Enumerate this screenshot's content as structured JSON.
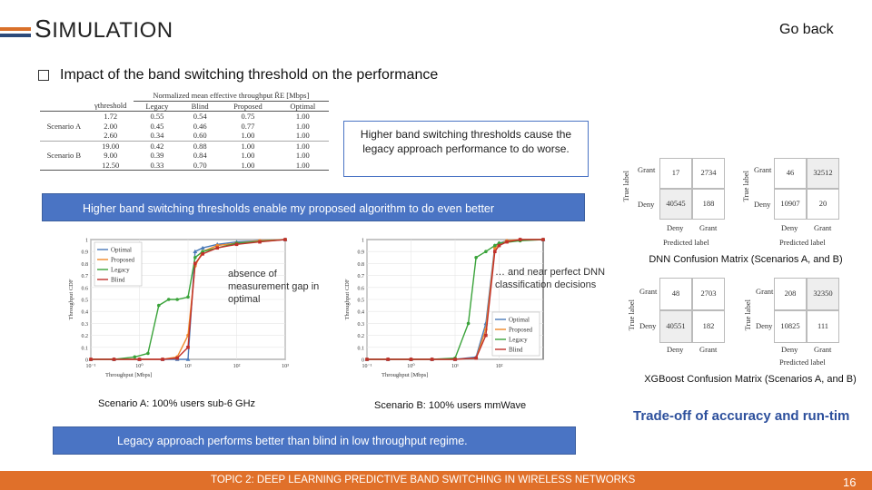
{
  "header": {
    "title_first": "S",
    "title_rest": "IMULATION",
    "go_back": "Go back"
  },
  "subtitle": "Impact of the band switching threshold on the performance",
  "table": {
    "caption": "Normalized mean effective throughput R̄E [Mbps]",
    "columns": [
      "γthreshold",
      "Legacy",
      "Blind",
      "Proposed",
      "Optimal"
    ],
    "rows": [
      {
        "scenario": "",
        "values": [
          "1.72",
          "0.55",
          "0.54",
          "0.75",
          "1.00"
        ]
      },
      {
        "scenario": "Scenario A",
        "values": [
          "2.00",
          "0.45",
          "0.46",
          "0.77",
          "1.00"
        ]
      },
      {
        "scenario": "",
        "values": [
          "2.60",
          "0.34",
          "0.60",
          "1.00",
          "1.00"
        ]
      },
      {
        "scenario": "",
        "values": [
          "19.00",
          "0.42",
          "0.88",
          "1.00",
          "1.00"
        ]
      },
      {
        "scenario": "Scenario B",
        "values": [
          "9.00",
          "0.39",
          "0.84",
          "1.00",
          "1.00"
        ]
      },
      {
        "scenario": "",
        "values": [
          "12.50",
          "0.33",
          "0.70",
          "1.00",
          "1.00"
        ]
      }
    ]
  },
  "callouts": {
    "legacy_worse": "Higher band switching thresholds cause the legacy approach performance to do worse.",
    "proposed_better": "Higher band switching thresholds enable my proposed algorithm to do even better",
    "legacy_vs_blind": "Legacy approach performs better than blind in low throughput regime.",
    "gap": "absence of measurement gap in optimal",
    "near_perfect": "… and near perfect DNN classification decisions"
  },
  "colors": {
    "optimal": "#4a79b8",
    "proposed": "#f0882a",
    "legacy": "#3aa33a",
    "blind": "#c0302a",
    "accent": "#4a74c4",
    "footer": "#e0702a"
  },
  "chart_data": [
    {
      "type": "line",
      "title": "",
      "xlabel": "Throughput [Mbps]",
      "ylabel": "Throughput CDF",
      "xscale": "log",
      "xlim": [
        0.1,
        1000
      ],
      "ylim": [
        0,
        1
      ],
      "x_ticks": [
        "10⁻¹",
        "10⁰",
        "10¹",
        "10²",
        "10³"
      ],
      "y_ticks": [
        "0",
        "0.1",
        "0.2",
        "0.3",
        "0.4",
        "0.5",
        "0.6",
        "0.7",
        "0.8",
        "0.9",
        "1"
      ],
      "legend": "top-left",
      "series": [
        {
          "name": "Optimal",
          "color": "#4a79b8",
          "marker": "triangle",
          "x": [
            0.1,
            0.3,
            1,
            3,
            6,
            10,
            14,
            20,
            40,
            100,
            300,
            1000
          ],
          "y": [
            0,
            0,
            0,
            0,
            0,
            0,
            0.9,
            0.93,
            0.96,
            0.98,
            0.99,
            1
          ]
        },
        {
          "name": "Proposed",
          "color": "#f0882a",
          "marker": "circle",
          "x": [
            0.1,
            0.3,
            1,
            3,
            6,
            10,
            14,
            20,
            40,
            100,
            300,
            1000
          ],
          "y": [
            0,
            0,
            0,
            0,
            0.02,
            0.2,
            0.78,
            0.9,
            0.95,
            0.97,
            0.99,
            1
          ]
        },
        {
          "name": "Legacy",
          "color": "#3aa33a",
          "marker": "circle",
          "x": [
            0.1,
            0.3,
            0.8,
            1.5,
            2.5,
            4,
            6,
            10,
            14,
            20,
            100,
            1000
          ],
          "y": [
            0,
            0,
            0.02,
            0.05,
            0.45,
            0.5,
            0.5,
            0.52,
            0.85,
            0.9,
            0.97,
            1
          ]
        },
        {
          "name": "Blind",
          "color": "#c0302a",
          "marker": "square",
          "x": [
            0.1,
            0.3,
            1,
            3,
            6,
            10,
            14,
            20,
            40,
            100,
            300,
            1000
          ],
          "y": [
            0,
            0,
            0,
            0,
            0.01,
            0.1,
            0.8,
            0.88,
            0.93,
            0.96,
            0.98,
            1
          ]
        }
      ],
      "caption": "Scenario A: 100% users sub-6 GHz"
    },
    {
      "type": "line",
      "title": "",
      "xlabel": "Throughput [Mbps]",
      "ylabel": "Throughput CDF",
      "xscale": "log",
      "xlim": [
        0.1,
        1000
      ],
      "ylim": [
        0,
        1
      ],
      "x_ticks": [
        "10⁻¹",
        "10⁰",
        "10¹",
        "10²"
      ],
      "y_ticks": [
        "0",
        "0.1",
        "0.2",
        "0.3",
        "0.4",
        "0.5",
        "0.6",
        "0.7",
        "0.8",
        "0.9",
        "1"
      ],
      "legend": "bottom-right",
      "series": [
        {
          "name": "Optimal",
          "color": "#4a79b8",
          "marker": "triangle",
          "x": [
            0.1,
            0.3,
            1,
            3,
            10,
            30,
            50,
            80,
            100,
            150,
            300,
            1000
          ],
          "y": [
            0,
            0,
            0,
            0,
            0,
            0.02,
            0.3,
            0.95,
            0.97,
            0.99,
            1,
            1
          ]
        },
        {
          "name": "Proposed",
          "color": "#f0882a",
          "marker": "circle",
          "x": [
            0.1,
            0.3,
            1,
            3,
            10,
            30,
            50,
            80,
            100,
            150,
            300,
            1000
          ],
          "y": [
            0,
            0,
            0,
            0,
            0,
            0.01,
            0.25,
            0.93,
            0.96,
            0.99,
            1,
            1
          ]
        },
        {
          "name": "Legacy",
          "color": "#3aa33a",
          "marker": "circle",
          "x": [
            0.1,
            0.3,
            1,
            3,
            10,
            20,
            30,
            50,
            80,
            100,
            300,
            1000
          ],
          "y": [
            0,
            0,
            0,
            0,
            0.01,
            0.3,
            0.85,
            0.9,
            0.95,
            0.97,
            0.99,
            1
          ]
        },
        {
          "name": "Blind",
          "color": "#c0302a",
          "marker": "square",
          "x": [
            0.1,
            0.3,
            1,
            3,
            10,
            30,
            50,
            80,
            100,
            150,
            300,
            1000
          ],
          "y": [
            0,
            0,
            0,
            0,
            0,
            0.01,
            0.2,
            0.9,
            0.95,
            0.98,
            1,
            1
          ]
        }
      ],
      "caption": "Scenario B: 100% users mmWave"
    }
  ],
  "confusion_matrices": {
    "dnn": {
      "caption": "DNN Confusion Matrix (Scenarios A, and B)",
      "true_label": "True label",
      "predicted_label": "Predicted label",
      "classes": [
        "Grant",
        "Deny"
      ],
      "col_classes": [
        "Deny",
        "Grant"
      ],
      "scenario_a": [
        [
          "17",
          "2734"
        ],
        [
          "40545",
          "188"
        ]
      ],
      "scenario_b": [
        [
          "46",
          "32512"
        ],
        [
          "10907",
          "20"
        ]
      ]
    },
    "xgboost": {
      "caption": "XGBoost Confusion Matrix (Scenarios A, and B)",
      "true_label": "True label",
      "predicted_label": "Predicted label",
      "classes": [
        "Grant",
        "Deny"
      ],
      "col_classes": [
        "Deny",
        "Grant"
      ],
      "scenario_a": [
        [
          "48",
          "2703"
        ],
        [
          "40551",
          "182"
        ]
      ],
      "scenario_b": [
        [
          "208",
          "32350"
        ],
        [
          "10825",
          "111"
        ]
      ]
    }
  },
  "tradeoff": "Trade-off of accuracy and run-tim",
  "footer": {
    "topic": "TOPIC 2: DEEP LEARNING PREDICTIVE BAND SWITCHING IN WIRELESS NETWORKS",
    "page": "16"
  }
}
